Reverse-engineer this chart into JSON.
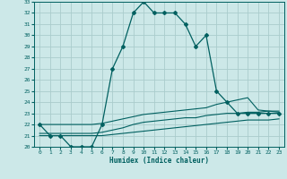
{
  "xlabel": "Humidex (Indice chaleur)",
  "background_color": "#cce8e8",
  "grid_color": "#aacccc",
  "line_color": "#006060",
  "xlim": [
    -0.5,
    23.5
  ],
  "ylim": [
    20,
    33
  ],
  "xticks": [
    0,
    1,
    2,
    3,
    4,
    5,
    6,
    7,
    8,
    9,
    10,
    11,
    12,
    13,
    14,
    15,
    16,
    17,
    18,
    19,
    20,
    21,
    22,
    23
  ],
  "yticks": [
    20,
    21,
    22,
    23,
    24,
    25,
    26,
    27,
    28,
    29,
    30,
    31,
    32,
    33
  ],
  "series": [
    {
      "x": [
        0,
        1,
        2,
        3,
        4,
        5,
        6,
        7,
        8,
        9,
        10,
        11,
        12,
        13,
        14,
        15,
        16,
        17,
        18,
        19,
        20,
        21,
        22,
        23
      ],
      "y": [
        22,
        21,
        21,
        20,
        20,
        20,
        22,
        27,
        29,
        32,
        33,
        32,
        32,
        32,
        31,
        29,
        30,
        25,
        24,
        23,
        23,
        23,
        23,
        23
      ],
      "marker": true,
      "lw": 0.9
    },
    {
      "x": [
        0,
        1,
        2,
        3,
        4,
        5,
        6,
        7,
        8,
        9,
        10,
        11,
        12,
        13,
        14,
        15,
        16,
        17,
        18,
        19,
        20,
        21,
        22,
        23
      ],
      "y": [
        21.0,
        21.0,
        21.0,
        21.0,
        21.0,
        21.0,
        21.0,
        21.1,
        21.2,
        21.3,
        21.4,
        21.5,
        21.6,
        21.7,
        21.8,
        21.9,
        22.0,
        22.1,
        22.2,
        22.3,
        22.4,
        22.4,
        22.4,
        22.5
      ],
      "marker": false,
      "lw": 0.8
    },
    {
      "x": [
        0,
        1,
        2,
        3,
        4,
        5,
        6,
        7,
        8,
        9,
        10,
        11,
        12,
        13,
        14,
        15,
        16,
        17,
        18,
        19,
        20,
        21,
        22,
        23
      ],
      "y": [
        21.2,
        21.2,
        21.2,
        21.2,
        21.2,
        21.2,
        21.3,
        21.5,
        21.7,
        22.0,
        22.2,
        22.3,
        22.4,
        22.5,
        22.6,
        22.6,
        22.8,
        22.9,
        23.0,
        23.0,
        23.1,
        23.1,
        23.2,
        23.2
      ],
      "marker": false,
      "lw": 0.8
    },
    {
      "x": [
        0,
        1,
        2,
        3,
        4,
        5,
        6,
        7,
        8,
        9,
        10,
        11,
        12,
        13,
        14,
        15,
        16,
        17,
        18,
        19,
        20,
        21,
        22,
        23
      ],
      "y": [
        22.0,
        22.0,
        22.0,
        22.0,
        22.0,
        22.0,
        22.1,
        22.3,
        22.5,
        22.7,
        22.9,
        23.0,
        23.1,
        23.2,
        23.3,
        23.4,
        23.5,
        23.8,
        24.0,
        24.2,
        24.4,
        23.3,
        23.2,
        23.1
      ],
      "marker": false,
      "lw": 0.8
    }
  ]
}
